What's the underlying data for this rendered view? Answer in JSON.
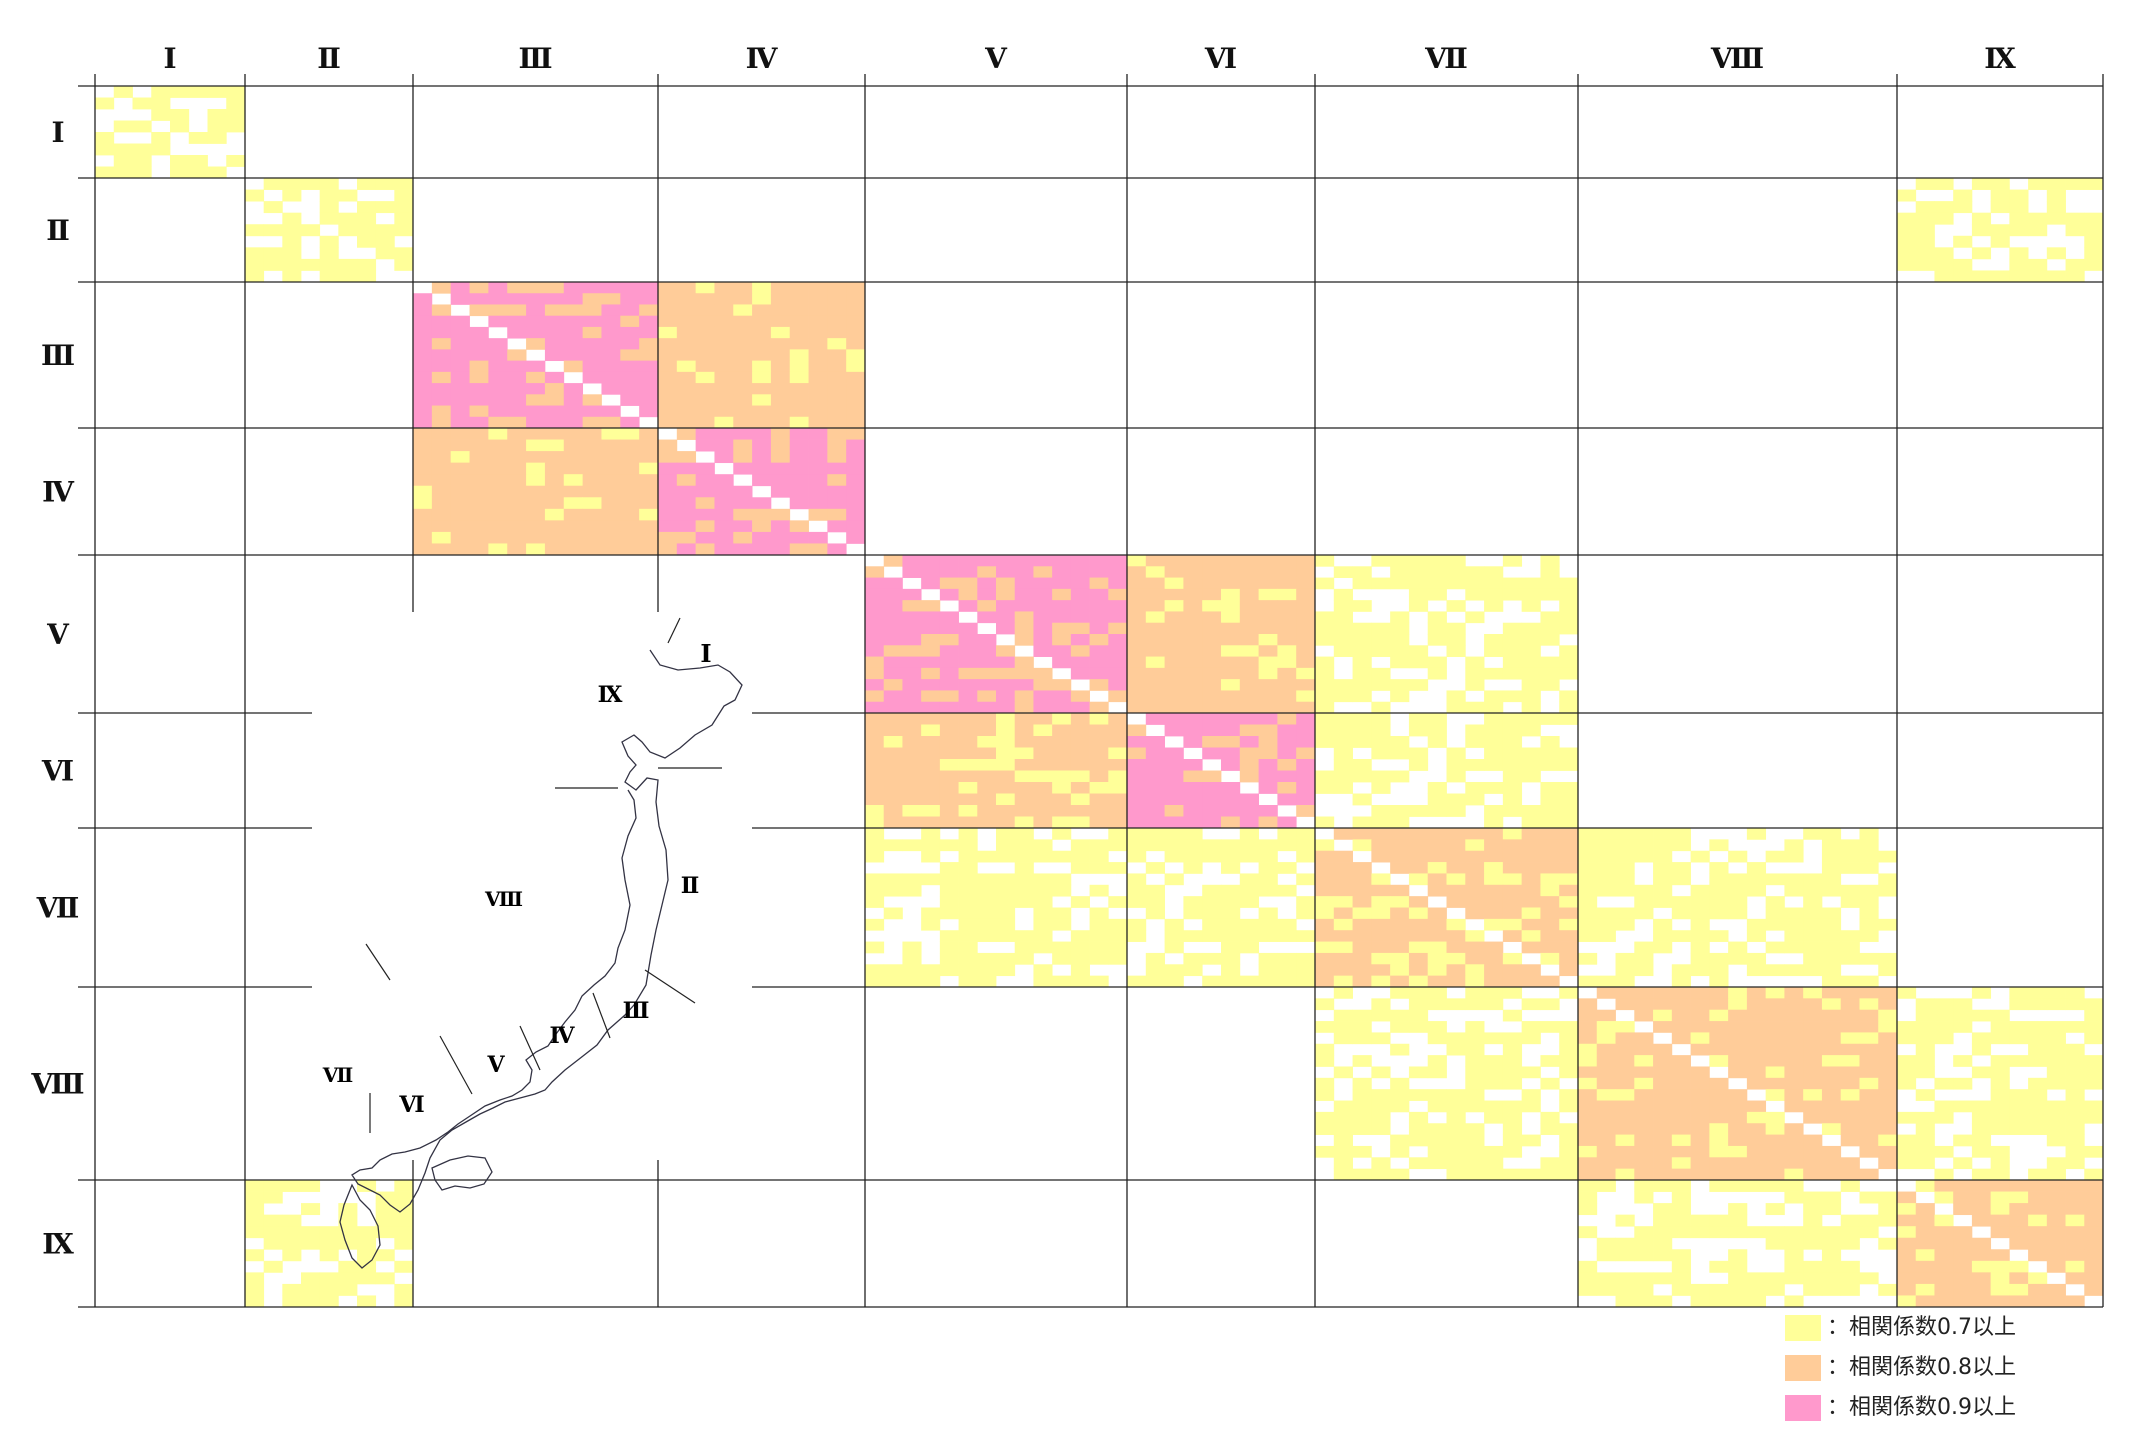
{
  "chart_data": {
    "type": "heatmap",
    "description_note": "",
    "regions": [
      "Ⅰ",
      "Ⅱ",
      "Ⅲ",
      "Ⅳ",
      "Ⅴ",
      "Ⅵ",
      "Ⅶ",
      "Ⅷ",
      "Ⅸ"
    ],
    "region_sizes": [
      8,
      9,
      13,
      11,
      14,
      10,
      14,
      17,
      11
    ],
    "levels": [
      {
        "level": 1,
        "label": "：相関係数0.7以上",
        "color": "#ffff99"
      },
      {
        "level": 2,
        "label": "：相関係数0.8以上",
        "color": "#ffcc99"
      },
      {
        "level": 3,
        "label": "：相関係数0.9以上",
        "color": "#ff99cc"
      }
    ],
    "block_levels": [
      [
        1,
        0,
        0,
        0,
        0,
        0,
        0,
        0,
        0
      ],
      [
        0,
        1,
        0,
        0,
        0,
        0,
        0,
        0,
        1
      ],
      [
        0,
        0,
        3,
        2,
        0,
        0,
        0,
        0,
        0
      ],
      [
        0,
        0,
        2,
        3,
        0,
        0,
        0,
        0,
        0
      ],
      [
        0,
        0,
        0,
        0,
        3,
        2,
        1,
        0,
        0
      ],
      [
        0,
        0,
        0,
        0,
        2,
        3,
        1,
        0,
        0
      ],
      [
        0,
        0,
        0,
        0,
        1,
        1,
        2,
        1,
        0
      ],
      [
        0,
        0,
        0,
        0,
        0,
        0,
        1,
        2,
        1
      ],
      [
        0,
        1,
        0,
        0,
        0,
        0,
        0,
        1,
        2
      ]
    ],
    "map_labels": [
      "Ⅰ",
      "Ⅸ",
      "Ⅱ",
      "Ⅷ",
      "Ⅲ",
      "Ⅳ",
      "Ⅴ",
      "Ⅶ",
      "Ⅵ"
    ]
  },
  "legend": [
    {
      "label": "：相関係数0.7以上",
      "color": "#ffff99"
    },
    {
      "label": "：相関係数0.8以上",
      "color": "#ffcc99"
    },
    {
      "label": "：相関係数0.9以上",
      "color": "#ff99cc"
    }
  ]
}
